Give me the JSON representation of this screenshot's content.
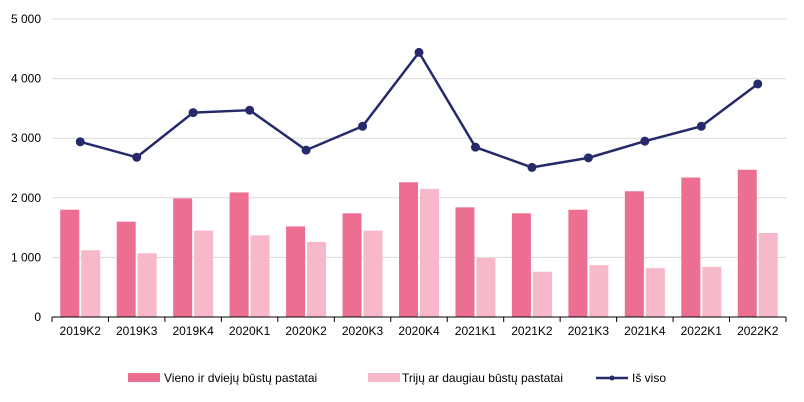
{
  "colors": {
    "series1": "#ec6f92",
    "series2": "#f7b8c9",
    "line": "#262a6b",
    "grid": "#d9d9d9",
    "axis": "#000000"
  },
  "chart_data": {
    "type": "bar",
    "categories": [
      "2019K2",
      "2019K3",
      "2019K4",
      "2020K1",
      "2020K2",
      "2020K3",
      "2020K4",
      "2021K1",
      "2021K2",
      "2021K3",
      "2021K4",
      "2022K1",
      "2022K2"
    ],
    "series": [
      {
        "name": "Vieno ir dviejų būstų pastatai",
        "type": "bar",
        "values": [
          1800,
          1600,
          1990,
          2090,
          1520,
          1740,
          2260,
          1840,
          1740,
          1800,
          2110,
          2340,
          2470
        ]
      },
      {
        "name": "Trijų ar daugiau būstų pastatai",
        "type": "bar",
        "values": [
          1120,
          1070,
          1450,
          1370,
          1260,
          1450,
          2150,
          990,
          760,
          870,
          820,
          840,
          1410
        ]
      },
      {
        "name": "Iš viso",
        "type": "line",
        "values": [
          2940,
          2680,
          3430,
          3470,
          2800,
          3200,
          4440,
          2850,
          2510,
          2670,
          2950,
          3200,
          3910
        ]
      }
    ],
    "ylim": [
      0,
      5000
    ],
    "yticks": [
      "0",
      "1 000",
      "2 000",
      "3 000",
      "4 000",
      "5 000"
    ],
    "ytick_values": [
      0,
      1000,
      2000,
      3000,
      4000,
      5000
    ],
    "grid": true,
    "legend_position": "bottom",
    "xlabel": "",
    "ylabel": "",
    "title": ""
  }
}
